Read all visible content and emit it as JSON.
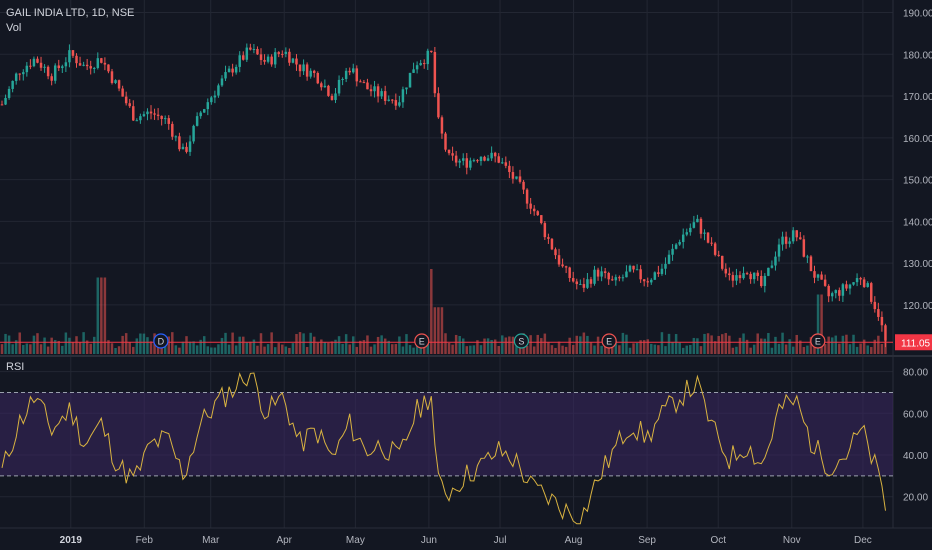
{
  "header": {
    "symbol": "GAIL INDIA LTD, 1D, NSE",
    "volume_label": "Vol",
    "rsi_label": "RSI"
  },
  "colors": {
    "background": "#131722",
    "grid": "#232733",
    "up": "#26a69a",
    "down": "#ef5350",
    "rsi_line": "#d9b341",
    "rsi_band": "#3a2660",
    "last_price": "#f23645"
  },
  "chart_data": [
    {
      "type": "candlestick",
      "title": "GAIL INDIA LTD, 1D, NSE",
      "y_axis_ticks": [
        "190.00",
        "180.00",
        "170.00",
        "160.00",
        "150.00",
        "140.00",
        "130.00",
        "120.00"
      ],
      "ylim": [
        108,
        193
      ],
      "x_axis_ticks": [
        "2019",
        "Feb",
        "Mar",
        "Apr",
        "May",
        "Jun",
        "Jul",
        "Aug",
        "Sep",
        "Oct",
        "Nov",
        "Dec"
      ],
      "last_price": "111.05",
      "close_path": [
        [
          "2018-12-03",
          168
        ],
        [
          "2018-12-10",
          176
        ],
        [
          "2018-12-17",
          179
        ],
        [
          "2018-12-24",
          175
        ],
        [
          "2019-01-01",
          180
        ],
        [
          "2019-01-07",
          177
        ],
        [
          "2019-01-14",
          179
        ],
        [
          "2019-01-21",
          172
        ],
        [
          "2019-01-28",
          165
        ],
        [
          "2019-02-04",
          166
        ],
        [
          "2019-02-11",
          164
        ],
        [
          "2019-02-18",
          156
        ],
        [
          "2019-02-25",
          166
        ],
        [
          "2019-03-04",
          172
        ],
        [
          "2019-03-11",
          177
        ],
        [
          "2019-03-18",
          181
        ],
        [
          "2019-03-25",
          178
        ],
        [
          "2019-04-01",
          181
        ],
        [
          "2019-04-08",
          177
        ],
        [
          "2019-04-15",
          175
        ],
        [
          "2019-04-22",
          170
        ],
        [
          "2019-04-29",
          177
        ],
        [
          "2019-05-06",
          172
        ],
        [
          "2019-05-13",
          170
        ],
        [
          "2019-05-20",
          169
        ],
        [
          "2019-05-27",
          178
        ],
        [
          "2019-06-03",
          180
        ],
        [
          "2019-06-05",
          165
        ],
        [
          "2019-06-10",
          155
        ],
        [
          "2019-06-17",
          154
        ],
        [
          "2019-06-24",
          156
        ],
        [
          "2019-07-01",
          155
        ],
        [
          "2019-07-08",
          150
        ],
        [
          "2019-07-15",
          144
        ],
        [
          "2019-07-22",
          136
        ],
        [
          "2019-07-29",
          128
        ],
        [
          "2019-08-05",
          124
        ],
        [
          "2019-08-12",
          128
        ],
        [
          "2019-08-19",
          125
        ],
        [
          "2019-08-26",
          128
        ],
        [
          "2019-09-02",
          126
        ],
        [
          "2019-09-09",
          129
        ],
        [
          "2019-09-16",
          136
        ],
        [
          "2019-09-23",
          140
        ],
        [
          "2019-09-30",
          133
        ],
        [
          "2019-10-07",
          126
        ],
        [
          "2019-10-14",
          129
        ],
        [
          "2019-10-21",
          124
        ],
        [
          "2019-10-28",
          135
        ],
        [
          "2019-11-04",
          137
        ],
        [
          "2019-11-11",
          128
        ],
        [
          "2019-11-18",
          122
        ],
        [
          "2019-11-25",
          124
        ],
        [
          "2019-12-02",
          127
        ],
        [
          "2019-12-09",
          118
        ],
        [
          "2019-12-12",
          111
        ]
      ],
      "volume_spikes": [
        [
          "2019-01-14",
          0.9
        ],
        [
          "2019-06-04",
          1.0
        ],
        [
          "2019-06-06",
          0.55
        ],
        [
          "2019-11-14",
          0.7
        ]
      ],
      "event_markers": [
        {
          "date": "2019-02-08",
          "label": "D",
          "type": "dividend"
        },
        {
          "date": "2019-05-29",
          "label": "E",
          "type": "earnings"
        },
        {
          "date": "2019-07-10",
          "label": "S",
          "type": "split"
        },
        {
          "date": "2019-08-16",
          "label": "E",
          "type": "earnings"
        },
        {
          "date": "2019-11-12",
          "label": "E",
          "type": "earnings"
        }
      ]
    },
    {
      "type": "line",
      "title": "RSI",
      "y_axis_ticks": [
        "80.00",
        "60.00",
        "40.00",
        "20.00"
      ],
      "ylim": [
        5,
        87
      ],
      "band": [
        30,
        70
      ],
      "values_path": [
        [
          "2018-12-03",
          32
        ],
        [
          "2018-12-10",
          55
        ],
        [
          "2018-12-17",
          68
        ],
        [
          "2018-12-24",
          52
        ],
        [
          "2019-01-01",
          62
        ],
        [
          "2019-01-07",
          45
        ],
        [
          "2019-01-14",
          55
        ],
        [
          "2019-01-21",
          35
        ],
        [
          "2019-01-28",
          28
        ],
        [
          "2019-02-04",
          45
        ],
        [
          "2019-02-11",
          48
        ],
        [
          "2019-02-18",
          30
        ],
        [
          "2019-02-25",
          55
        ],
        [
          "2019-03-04",
          65
        ],
        [
          "2019-03-11",
          72
        ],
        [
          "2019-03-18",
          80
        ],
        [
          "2019-03-25",
          60
        ],
        [
          "2019-04-01",
          68
        ],
        [
          "2019-04-08",
          45
        ],
        [
          "2019-04-15",
          52
        ],
        [
          "2019-04-22",
          38
        ],
        [
          "2019-04-29",
          55
        ],
        [
          "2019-05-06",
          42
        ],
        [
          "2019-05-13",
          45
        ],
        [
          "2019-05-20",
          38
        ],
        [
          "2019-05-27",
          60
        ],
        [
          "2019-06-03",
          70
        ],
        [
          "2019-06-05",
          27
        ],
        [
          "2019-06-10",
          22
        ],
        [
          "2019-06-17",
          30
        ],
        [
          "2019-06-24",
          35
        ],
        [
          "2019-07-01",
          42
        ],
        [
          "2019-07-08",
          38
        ],
        [
          "2019-07-15",
          25
        ],
        [
          "2019-07-22",
          20
        ],
        [
          "2019-07-29",
          14
        ],
        [
          "2019-08-05",
          9
        ],
        [
          "2019-08-12",
          28
        ],
        [
          "2019-08-19",
          42
        ],
        [
          "2019-08-26",
          55
        ],
        [
          "2019-09-02",
          48
        ],
        [
          "2019-09-09",
          60
        ],
        [
          "2019-09-16",
          68
        ],
        [
          "2019-09-23",
          74
        ],
        [
          "2019-09-30",
          52
        ],
        [
          "2019-10-07",
          38
        ],
        [
          "2019-10-14",
          45
        ],
        [
          "2019-10-21",
          35
        ],
        [
          "2019-10-28",
          62
        ],
        [
          "2019-11-04",
          66
        ],
        [
          "2019-11-11",
          45
        ],
        [
          "2019-11-18",
          35
        ],
        [
          "2019-11-25",
          40
        ],
        [
          "2019-12-02",
          52
        ],
        [
          "2019-12-09",
          30
        ],
        [
          "2019-12-12",
          15
        ]
      ]
    }
  ]
}
